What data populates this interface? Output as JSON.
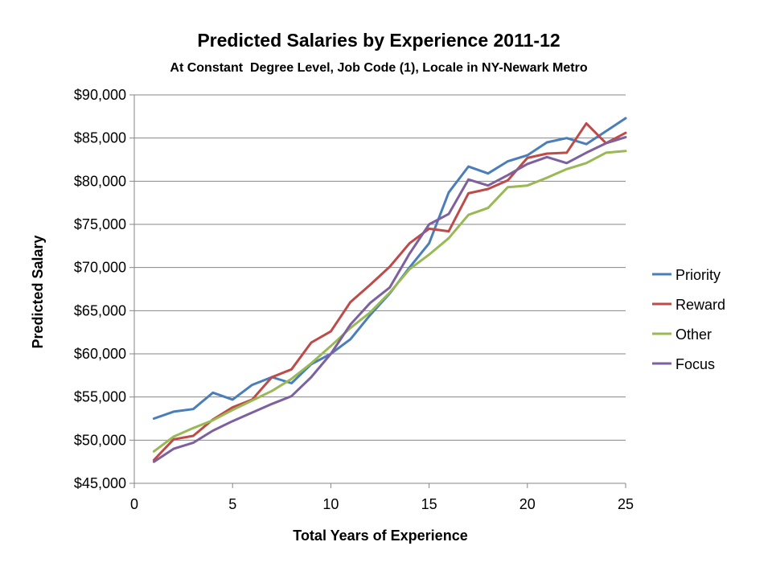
{
  "chart_data": {
    "type": "line",
    "title": "Predicted Salaries by Experience 2011-12",
    "subtitle": "At Constant  Degree Level, Job Code (1), Locale in NY-Newark Metro",
    "xlabel": "Total Years of Experience",
    "ylabel": "Predicted Salary",
    "xlim": [
      0,
      25
    ],
    "ylim": [
      45000,
      90000
    ],
    "xticks": [
      0,
      5,
      10,
      15,
      20,
      25
    ],
    "yticks": [
      45000,
      50000,
      55000,
      60000,
      65000,
      70000,
      75000,
      80000,
      85000,
      90000
    ],
    "ytick_labels": [
      "$45,000",
      "$50,000",
      "$55,000",
      "$60,000",
      "$65,000",
      "$70,000",
      "$75,000",
      "$80,000",
      "$85,000",
      "$90,000"
    ],
    "grid": "horizontal",
    "legend": "right",
    "x": [
      1,
      2,
      3,
      4,
      5,
      6,
      7,
      8,
      9,
      10,
      11,
      12,
      13,
      14,
      15,
      16,
      17,
      18,
      19,
      20,
      21,
      22,
      23,
      24,
      25
    ],
    "series": [
      {
        "name": "Priority",
        "color": "#4a7ebb",
        "values": [
          52500,
          53300,
          53600,
          55500,
          54700,
          56400,
          57300,
          56600,
          58800,
          60000,
          61700,
          64500,
          67000,
          70000,
          72800,
          78700,
          81700,
          80900,
          82300,
          83000,
          84500,
          85000,
          84300,
          85800,
          87300
        ]
      },
      {
        "name": "Reward",
        "color": "#be4b48",
        "values": [
          47700,
          50100,
          50500,
          52400,
          53800,
          54700,
          57300,
          58200,
          61300,
          62600,
          66000,
          68000,
          70100,
          72800,
          74500,
          74200,
          78600,
          79100,
          80100,
          82700,
          83200,
          83300,
          86700,
          84400,
          85600
        ]
      },
      {
        "name": "Other",
        "color": "#98b954",
        "values": [
          48700,
          50400,
          51400,
          52300,
          53500,
          54600,
          55700,
          57100,
          58900,
          60900,
          63000,
          64800,
          67100,
          69800,
          71500,
          73400,
          76100,
          76900,
          79300,
          79500,
          80400,
          81400,
          82100,
          83300,
          83500
        ]
      },
      {
        "name": "Focus",
        "color": "#7d60a0",
        "values": [
          47500,
          49000,
          49700,
          51100,
          52200,
          53200,
          54200,
          55100,
          57300,
          60000,
          63400,
          65900,
          67700,
          71600,
          75000,
          76200,
          80200,
          79500,
          80700,
          82000,
          82800,
          82100,
          83300,
          84400,
          85100
        ]
      }
    ]
  }
}
